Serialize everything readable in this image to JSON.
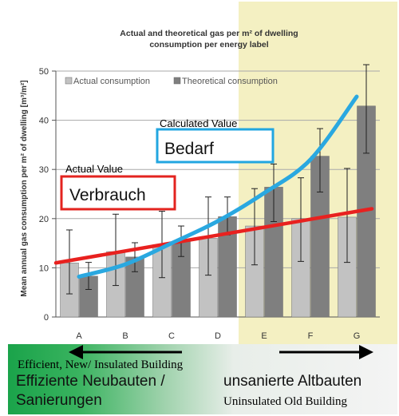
{
  "chart_data": {
    "type": "bar",
    "title_line1": "Actual and theoretical gas per m² of dwelling",
    "title_line2": "consumption per energy label",
    "ylabel": "Mean annual gas consumption per m² of dwelling [m³/m²]",
    "xlabel": "",
    "ylim": [
      0,
      50
    ],
    "yticks": [
      0,
      10,
      20,
      30,
      40,
      50
    ],
    "grid": true,
    "legend_position": "top-left",
    "categories": [
      "A",
      "B",
      "C",
      "D",
      "E",
      "F",
      "G"
    ],
    "series": [
      {
        "name": "Actual consumption",
        "color": "#c2c2c2",
        "values": [
          11,
          13.3,
          14.7,
          16,
          18.5,
          20,
          20.3
        ],
        "err_low": [
          4.7,
          6.4,
          8,
          8.5,
          10.6,
          11.3,
          11.1
        ],
        "err_high": [
          17.7,
          20.9,
          21.5,
          24.4,
          26.1,
          28.3,
          30.2
        ]
      },
      {
        "name": "Theoretical consumption",
        "color": "#7f7f7f",
        "values": [
          8.3,
          12.2,
          15.3,
          20.4,
          26.4,
          32.7,
          42.9
        ],
        "err_low": [
          5.6,
          9.2,
          12.3,
          16.7,
          19.4,
          25.4,
          33.3
        ],
        "err_high": [
          11.1,
          15.1,
          18.5,
          24.4,
          31.1,
          38.3,
          51.3
        ]
      }
    ],
    "overlay_lines": [
      {
        "color": "#e8211f",
        "x": [
          "A",
          "G"
        ],
        "y": [
          11,
          22
        ]
      },
      {
        "color": "#2aa8e0",
        "x": [
          "A",
          "B",
          "C",
          "D",
          "E",
          "F",
          "G"
        ],
        "y": [
          8.2,
          10.7,
          15,
          19.5,
          25.2,
          32,
          44.8
        ]
      }
    ],
    "shaded_categories": [
      "E",
      "F",
      "G"
    ],
    "shade_color": "#f4f0c2",
    "annotations": {
      "calculated_value": "Calculated Value",
      "bedarf": "Bedarf",
      "actual_value": "Actual Value",
      "verbrauch": "Verbrauch",
      "bedarf_box_color": "#22a6e0",
      "verbrauch_box_color": "#e3231f"
    }
  },
  "footer": {
    "efficient_en": "Efficient, New/ Insulated Building",
    "efficient_de_line1": "Effiziente Neubauten /",
    "efficient_de_line2": "Sanierungen",
    "unsanierte_de": "unsanierte Altbauten",
    "uninsulated_en": "Uninsulated Old Building"
  }
}
